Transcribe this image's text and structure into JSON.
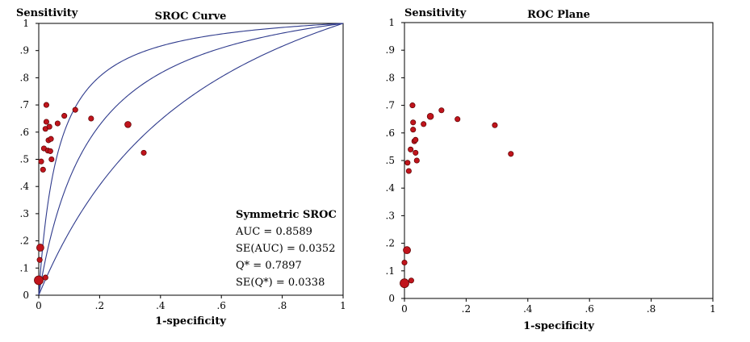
{
  "chart_data": [
    {
      "type": "scatter",
      "title": "SROC Curve",
      "ylabel": "Sensitivity",
      "xlabel": "1-specificity",
      "xlim": [
        0,
        1
      ],
      "ylim": [
        0,
        1
      ],
      "x_ticks": [
        "0",
        ".2",
        ".4",
        ".6",
        ".8",
        "1"
      ],
      "y_ticks": [
        "0",
        ".1",
        ".2",
        ".3",
        ".4",
        ".5",
        ".6",
        ".7",
        ".8",
        ".9",
        "1"
      ],
      "points": [
        {
          "x": 0.0,
          "y": 0.055,
          "size": 3
        },
        {
          "x": 0.003,
          "y": 0.13,
          "size": 1
        },
        {
          "x": 0.005,
          "y": 0.175,
          "size": 2
        },
        {
          "x": 0.022,
          "y": 0.065,
          "size": 1
        },
        {
          "x": 0.008,
          "y": 0.492,
          "size": 1
        },
        {
          "x": 0.014,
          "y": 0.462,
          "size": 1
        },
        {
          "x": 0.017,
          "y": 0.54,
          "size": 1
        },
        {
          "x": 0.022,
          "y": 0.612,
          "size": 1
        },
        {
          "x": 0.025,
          "y": 0.7,
          "size": 1
        },
        {
          "x": 0.025,
          "y": 0.638,
          "size": 1
        },
        {
          "x": 0.03,
          "y": 0.532,
          "size": 1
        },
        {
          "x": 0.032,
          "y": 0.57,
          "size": 1
        },
        {
          "x": 0.035,
          "y": 0.62,
          "size": 1
        },
        {
          "x": 0.038,
          "y": 0.53,
          "size": 1
        },
        {
          "x": 0.04,
          "y": 0.575,
          "size": 1
        },
        {
          "x": 0.042,
          "y": 0.5,
          "size": 1
        },
        {
          "x": 0.062,
          "y": 0.632,
          "size": 1
        },
        {
          "x": 0.084,
          "y": 0.66,
          "size": 1
        },
        {
          "x": 0.12,
          "y": 0.682,
          "size": 1
        },
        {
          "x": 0.172,
          "y": 0.65,
          "size": 1
        },
        {
          "x": 0.293,
          "y": 0.628,
          "size": 1.5
        },
        {
          "x": 0.345,
          "y": 0.524,
          "size": 1
        }
      ],
      "curves": [
        {
          "name": "SROC",
          "auc": 0.8589
        },
        {
          "name": "upper"
        },
        {
          "name": "lower"
        }
      ],
      "annotation": {
        "title": "Symmetric SROC",
        "lines": [
          "AUC = 0.8589",
          "SE(AUC) = 0.0352",
          "Q* = 0.7897",
          "SE(Q*) = 0.0338"
        ]
      },
      "colors": {
        "curve": "#2e3a8c",
        "marker": "#c0141c",
        "marker_edge": "#5a0000"
      }
    },
    {
      "type": "scatter",
      "title": "ROC Plane",
      "ylabel": "Sensitivity",
      "xlabel": "1-specificity",
      "xlim": [
        0,
        1
      ],
      "ylim": [
        0,
        1
      ],
      "x_ticks": [
        "0",
        ".2",
        ".4",
        ".6",
        ".8",
        "1"
      ],
      "y_ticks": [
        "0",
        ".1",
        ".2",
        ".3",
        ".4",
        ".5",
        ".6",
        ".7",
        ".8",
        ".9",
        "1"
      ],
      "points": [
        {
          "x": 0.0,
          "y": 0.055,
          "size": 3
        },
        {
          "x": 0.0,
          "y": 0.13,
          "size": 1
        },
        {
          "x": 0.008,
          "y": 0.175,
          "size": 2
        },
        {
          "x": 0.022,
          "y": 0.065,
          "size": 1
        },
        {
          "x": 0.01,
          "y": 0.492,
          "size": 1
        },
        {
          "x": 0.014,
          "y": 0.462,
          "size": 1
        },
        {
          "x": 0.02,
          "y": 0.54,
          "size": 1
        },
        {
          "x": 0.026,
          "y": 0.7,
          "size": 1
        },
        {
          "x": 0.028,
          "y": 0.638,
          "size": 1
        },
        {
          "x": 0.028,
          "y": 0.612,
          "size": 1
        },
        {
          "x": 0.032,
          "y": 0.57,
          "size": 1
        },
        {
          "x": 0.036,
          "y": 0.575,
          "size": 1
        },
        {
          "x": 0.036,
          "y": 0.528,
          "size": 1
        },
        {
          "x": 0.04,
          "y": 0.5,
          "size": 1
        },
        {
          "x": 0.062,
          "y": 0.632,
          "size": 1
        },
        {
          "x": 0.084,
          "y": 0.66,
          "size": 1.5
        },
        {
          "x": 0.12,
          "y": 0.682,
          "size": 1
        },
        {
          "x": 0.172,
          "y": 0.65,
          "size": 1
        },
        {
          "x": 0.293,
          "y": 0.628,
          "size": 1
        },
        {
          "x": 0.345,
          "y": 0.524,
          "size": 1
        }
      ],
      "colors": {
        "marker": "#c0141c",
        "marker_edge": "#5a0000"
      }
    }
  ]
}
